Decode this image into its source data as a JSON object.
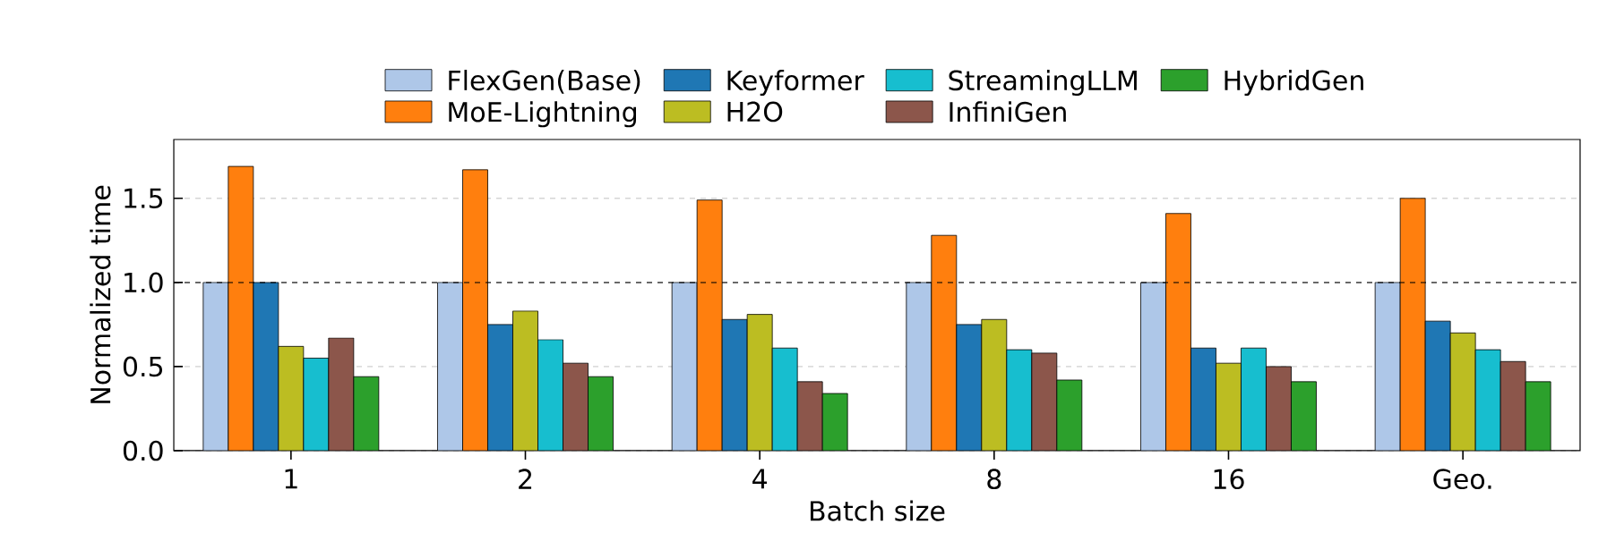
{
  "chart_data": {
    "type": "bar",
    "xlabel": "Batch size",
    "ylabel": "Normalized time",
    "categories": [
      "1",
      "2",
      "4",
      "8",
      "16",
      "Geo."
    ],
    "series": [
      {
        "name": "FlexGen(Base)",
        "color": "#aec7e8",
        "values": [
          1.0,
          1.0,
          1.0,
          1.0,
          1.0,
          1.0
        ]
      },
      {
        "name": "MoE-Lightning",
        "color": "#ff7f0e",
        "values": [
          1.69,
          1.67,
          1.49,
          1.28,
          1.41,
          1.5
        ]
      },
      {
        "name": "Keyformer",
        "color": "#1f77b4",
        "values": [
          1.0,
          0.75,
          0.78,
          0.75,
          0.61,
          0.77
        ]
      },
      {
        "name": "H2O",
        "color": "#bcbd22",
        "values": [
          0.62,
          0.83,
          0.81,
          0.78,
          0.52,
          0.7
        ]
      },
      {
        "name": "StreamingLLM",
        "color": "#17becf",
        "values": [
          0.55,
          0.66,
          0.61,
          0.6,
          0.61,
          0.6
        ]
      },
      {
        "name": "InfiniGen",
        "color": "#8c564b",
        "values": [
          0.67,
          0.52,
          0.41,
          0.58,
          0.5,
          0.53
        ]
      },
      {
        "name": "HybridGen",
        "color": "#2ca02c",
        "values": [
          0.44,
          0.44,
          0.34,
          0.42,
          0.41,
          0.41
        ]
      }
    ],
    "ylim": [
      0,
      1.85
    ],
    "yticks": [
      {
        "value": 0,
        "label": "0.0"
      },
      0.5,
      {
        "value": 1,
        "label": "1.0"
      },
      1.5
    ],
    "grid": "y",
    "legend": "top",
    "ref_lines": [
      {
        "axis": "y",
        "value": 1.0,
        "color": "#000000",
        "line_style": "dashed"
      }
    ]
  }
}
